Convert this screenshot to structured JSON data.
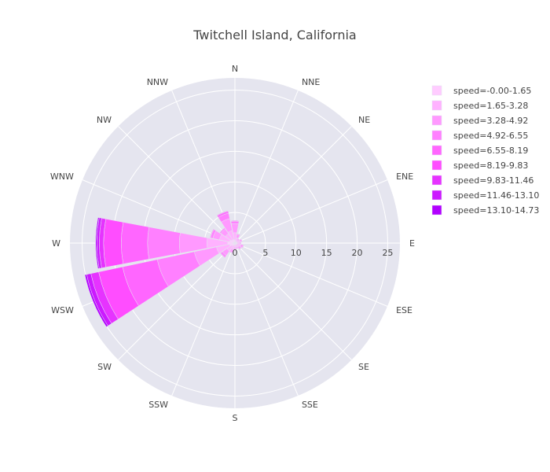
{
  "chart_data": {
    "type": "barpolar",
    "title": "Twitchell Island, California",
    "directions": [
      "N",
      "NNE",
      "NE",
      "ENE",
      "E",
      "ESE",
      "SE",
      "SSE",
      "S",
      "SSW",
      "SW",
      "WSW",
      "W",
      "WNW",
      "NW",
      "NNW"
    ],
    "radial_ticks": [
      "0",
      "5",
      "10",
      "15",
      "20",
      "25"
    ],
    "radial_range": [
      0,
      27
    ],
    "legend_position": "right",
    "series": [
      {
        "name": "speed=-0.00-1.65",
        "color": "#ffccff",
        "values": [
          0.5,
          0.3,
          0.2,
          0.4,
          0.3,
          0.4,
          0.3,
          0.3,
          0.3,
          0.4,
          0.6,
          0.9,
          1.2,
          0.9,
          0.7,
          0.6
        ]
      },
      {
        "name": "speed=1.65-3.28",
        "color": "#ffb2ff",
        "values": [
          1.2,
          0.6,
          0.4,
          0.5,
          0.5,
          0.6,
          0.5,
          0.4,
          0.4,
          0.7,
          1.0,
          2.2,
          3.4,
          1.7,
          1.2,
          1.5
        ]
      },
      {
        "name": "speed=3.28-4.92",
        "color": "#ff99ff",
        "values": [
          1.5,
          0.6,
          0.3,
          0.3,
          0.2,
          0.4,
          0.4,
          0.3,
          0.3,
          0.5,
          0.9,
          3.7,
          4.5,
          1.1,
          0.9,
          2.0
        ]
      },
      {
        "name": "speed=4.92-6.55",
        "color": "#ff80ff",
        "values": [
          0.4,
          0.1,
          0.0,
          0.0,
          0.0,
          0.1,
          0.1,
          0.0,
          0.0,
          0.1,
          0.3,
          6.2,
          5.2,
          0.4,
          0.2,
          0.9
        ]
      },
      {
        "name": "speed=6.55-8.19",
        "color": "#ff66ff",
        "values": [
          0.1,
          0.0,
          0.0,
          0.0,
          0.0,
          0.0,
          0.0,
          0.0,
          0.0,
          0.0,
          0.1,
          5.8,
          4.3,
          0.1,
          0.0,
          0.3
        ]
      },
      {
        "name": "speed=8.19-9.83",
        "color": "#ff4dff",
        "values": [
          0.0,
          0.0,
          0.0,
          0.0,
          0.0,
          0.0,
          0.0,
          0.0,
          0.0,
          0.0,
          0.0,
          4.0,
          2.9,
          0.0,
          0.0,
          0.1
        ]
      },
      {
        "name": "speed=9.83-11.46",
        "color": "#e633ff",
        "values": [
          0.0,
          0.0,
          0.0,
          0.0,
          0.0,
          0.0,
          0.0,
          0.0,
          0.0,
          0.0,
          0.0,
          1.3,
          0.7,
          0.0,
          0.0,
          0.0
        ]
      },
      {
        "name": "speed=11.46-13.10",
        "color": "#cc19ff",
        "values": [
          0.0,
          0.0,
          0.0,
          0.0,
          0.0,
          0.0,
          0.0,
          0.0,
          0.0,
          0.0,
          0.0,
          0.7,
          0.4,
          0.0,
          0.0,
          0.0
        ]
      },
      {
        "name": "speed=13.10-14.73",
        "color": "#b200ff",
        "values": [
          0.0,
          0.0,
          0.0,
          0.0,
          0.0,
          0.0,
          0.0,
          0.0,
          0.0,
          0.0,
          0.0,
          0.3,
          0.2,
          0.0,
          0.0,
          0.0
        ]
      }
    ]
  },
  "colors": {
    "polar_bg": "#e5e5ef",
    "grid": "#ffffff",
    "text": "#444444"
  }
}
